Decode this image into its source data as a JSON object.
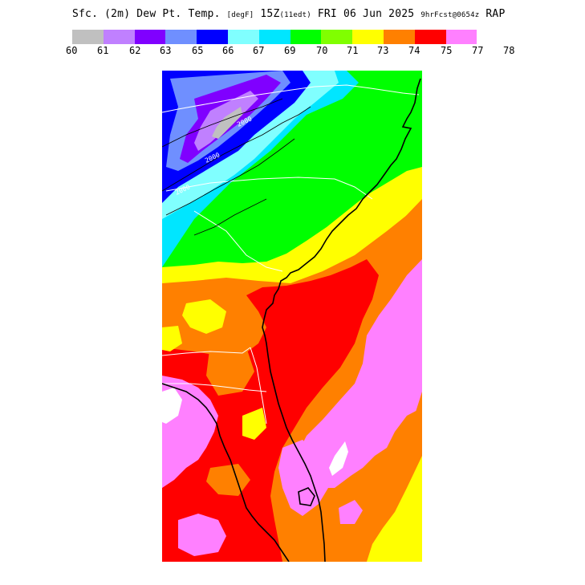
{
  "header": {
    "title_main": "Sfc. (2m) Dew Pt. Temp.",
    "title_units": "[degF]",
    "title_time": "15Z",
    "title_edt": "(11edt)",
    "title_date": "FRI 06 Jun 2025",
    "title_fcst": "9hrFcst@0654z",
    "title_model": "RAP"
  },
  "legend": {
    "colors": [
      "#c0c0c0",
      "#c080ff",
      "#8000ff",
      "#6f8fff",
      "#0000ff",
      "#80ffff",
      "#00e6ff",
      "#00ff00",
      "#80ff00",
      "#ffff00",
      "#ff8000",
      "#ff0000",
      "#ff80ff"
    ],
    "labels": [
      "60",
      "61",
      "62",
      "63",
      "65",
      "66",
      "67",
      "69",
      "70",
      "71",
      "73",
      "74",
      "75",
      "77",
      "78"
    ]
  },
  "map": {
    "contour_labels": [
      "2000",
      "2000",
      "2000"
    ],
    "palette": {
      "pink": "#ff80ff",
      "red": "#ff0000",
      "orange": "#ff8000",
      "yellow": "#ffff00",
      "lime": "#80ff00",
      "green": "#00ff00",
      "cyan": "#00e6ff",
      "lightcyan": "#80ffff",
      "blue": "#0000ff",
      "slate": "#6f8fff",
      "violet": "#8000ff",
      "lavender": "#c080ff",
      "gray": "#c0c0c0",
      "white": "#ffffff"
    }
  }
}
